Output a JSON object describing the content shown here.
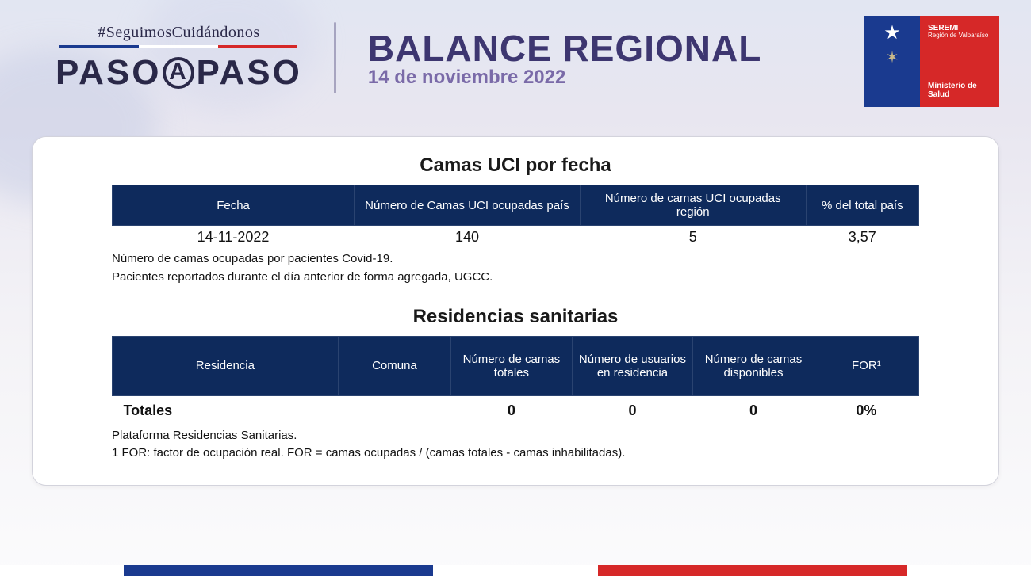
{
  "colors": {
    "navy": "#0e2a5c",
    "purple_text": "#3d3670",
    "subtitle": "#7a6aa8",
    "flag_blue": "#1a3a8f",
    "flag_red": "#d62828",
    "flag_white": "#ffffff"
  },
  "header": {
    "hashtag": "#SeguimosCuidándonos",
    "logo_left": "PASO",
    "logo_mid": "A",
    "logo_right": "PASO",
    "title": "BALANCE REGIONAL",
    "date": "14 de noviembre 2022"
  },
  "gov_logo": {
    "line1": "SEREMI",
    "line2": "Región de Valparaíso",
    "line3": "Ministerio de",
    "line4": "Salud"
  },
  "uci": {
    "title": "Camas UCI por fecha",
    "columns": [
      "Fecha",
      "Número de Camas UCI ocupadas país",
      "Número de camas UCI ocupadas región",
      "% del total país"
    ],
    "col_widths": [
      "30%",
      "28%",
      "28%",
      "14%"
    ],
    "row": {
      "fecha": "14-11-2022",
      "pais": "140",
      "region": "5",
      "pct": "3,57"
    },
    "note1": "Número de camas ocupadas por pacientes Covid-19.",
    "note2": "Pacientes reportados durante el día anterior de forma agregada, UGCC."
  },
  "rs": {
    "title": "Residencias sanitarias",
    "columns": [
      "Residencia",
      "Comuna",
      "Número de camas totales",
      "Número de usuarios en residencia",
      "Número de camas disponibles",
      "FOR¹"
    ],
    "col_widths": [
      "28%",
      "14%",
      "15%",
      "15%",
      "15%",
      "13%"
    ],
    "totals_label": "Totales",
    "totals": [
      "",
      "0",
      "0",
      "0",
      "0%"
    ],
    "note1": "Plataforma Residencias Sanitarias.",
    "note2": "1 FOR: factor de ocupación real. FOR = camas ocupadas / (camas totales - camas inhabilitadas)."
  },
  "footer_bars": [
    {
      "color": "#ffffff",
      "width": "12%"
    },
    {
      "color": "#1a3a8f",
      "width": "30%"
    },
    {
      "color": "#ffffff",
      "width": "16%"
    },
    {
      "color": "#d62828",
      "width": "30%"
    },
    {
      "color": "#ffffff",
      "width": "12%"
    }
  ]
}
